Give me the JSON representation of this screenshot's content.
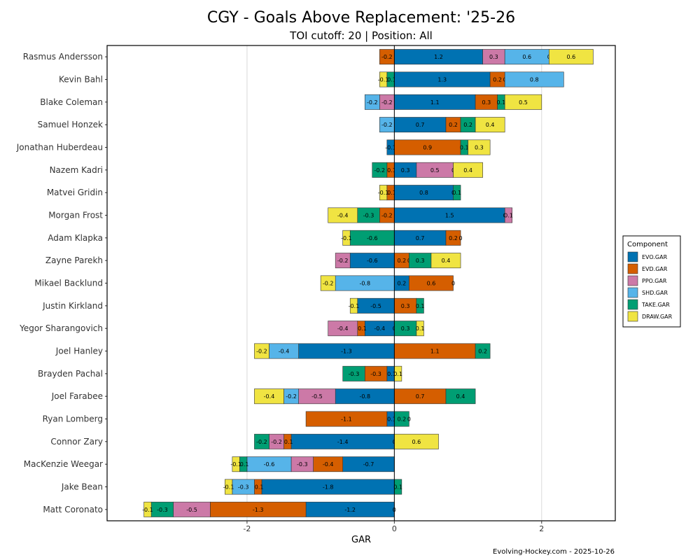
{
  "chart_data": {
    "type": "bar",
    "orientation": "horizontal",
    "stacked": "diverging",
    "title": "CGY - Goals Above Replacement: '25-26",
    "subtitle": "TOI cutoff: 20 | Position: All",
    "xlabel": "GAR",
    "ylabel": "",
    "xlim": [
      -3.9,
      3.0
    ],
    "xticks": [
      -2,
      0,
      2
    ],
    "xtick_labels": [
      "-2",
      "0",
      "2"
    ],
    "grid": true,
    "caption": "Evolving-Hockey.com - 2025-10-26",
    "legend": {
      "title": "Component",
      "position": "right",
      "entries": [
        "EVO.GAR",
        "EVD.GAR",
        "PPO.GAR",
        "SHD.GAR",
        "TAKE.GAR",
        "DRAW.GAR"
      ]
    },
    "series": [
      {
        "name": "EVO.GAR",
        "color": "#0072B2"
      },
      {
        "name": "EVD.GAR",
        "color": "#D55E00"
      },
      {
        "name": "PPO.GAR",
        "color": "#CC79A7"
      },
      {
        "name": "SHD.GAR",
        "color": "#56B4E9"
      },
      {
        "name": "TAKE.GAR",
        "color": "#009E73"
      },
      {
        "name": "DRAW.GAR",
        "color": "#F0E442"
      }
    ],
    "players": [
      {
        "name": "Rasmus Andersson",
        "segments": [
          [
            "EVD.GAR",
            -0.2,
            "-0.2"
          ],
          [
            "EVO.GAR",
            1.2,
            "1.2"
          ],
          [
            "PPO.GAR",
            0.3,
            "0.3"
          ],
          [
            "SHD.GAR",
            0.6,
            "0.6"
          ],
          [
            "TAKE.GAR",
            0.0,
            "0"
          ],
          [
            "DRAW.GAR",
            0.6,
            "0.6"
          ]
        ]
      },
      {
        "name": "Kevin Bahl",
        "segments": [
          [
            "TAKE.GAR",
            -0.1,
            "-0.1"
          ],
          [
            "DRAW.GAR",
            -0.1,
            "-0.1"
          ],
          [
            "EVO.GAR",
            1.3,
            "1.3"
          ],
          [
            "EVD.GAR",
            0.2,
            "0.2"
          ],
          [
            "PPO.GAR",
            0.0,
            "0"
          ],
          [
            "SHD.GAR",
            0.8,
            "0.8"
          ]
        ]
      },
      {
        "name": "Blake Coleman",
        "segments": [
          [
            "PPO.GAR",
            -0.2,
            "-0.2"
          ],
          [
            "SHD.GAR",
            -0.2,
            "-0.2"
          ],
          [
            "EVO.GAR",
            1.1,
            "1.1"
          ],
          [
            "EVD.GAR",
            0.3,
            "0.3"
          ],
          [
            "TAKE.GAR",
            0.1,
            "0.1"
          ],
          [
            "DRAW.GAR",
            0.5,
            "0.5"
          ]
        ]
      },
      {
        "name": "Samuel Honzek",
        "segments": [
          [
            "SHD.GAR",
            -0.2,
            "-0.2"
          ],
          [
            "EVO.GAR",
            0.7,
            "0.7"
          ],
          [
            "EVD.GAR",
            0.2,
            "0.2"
          ],
          [
            "TAKE.GAR",
            0.2,
            "0.2"
          ],
          [
            "DRAW.GAR",
            0.4,
            "0.4"
          ]
        ]
      },
      {
        "name": "Jonathan Huberdeau",
        "segments": [
          [
            "EVO.GAR",
            -0.1,
            "-0.1"
          ],
          [
            "EVD.GAR",
            0.9,
            "0.9"
          ],
          [
            "TAKE.GAR",
            0.1,
            "0.1"
          ],
          [
            "DRAW.GAR",
            0.3,
            "0.3"
          ]
        ]
      },
      {
        "name": "Nazem Kadri",
        "segments": [
          [
            "EVD.GAR",
            -0.1,
            "-0.1"
          ],
          [
            "TAKE.GAR",
            -0.2,
            "-0.2"
          ],
          [
            "EVO.GAR",
            0.3,
            "0.3"
          ],
          [
            "PPO.GAR",
            0.5,
            "0.5"
          ],
          [
            "SHD.GAR",
            0.0,
            "0"
          ],
          [
            "DRAW.GAR",
            0.4,
            "0.4"
          ]
        ]
      },
      {
        "name": "Matvei Gridin",
        "segments": [
          [
            "EVD.GAR",
            -0.1,
            "-0.1"
          ],
          [
            "DRAW.GAR",
            -0.1,
            "-0.1"
          ],
          [
            "EVO.GAR",
            0.8,
            "0.8"
          ],
          [
            "PPO.GAR",
            0.0,
            "0"
          ],
          [
            "TAKE.GAR",
            0.1,
            "0.1"
          ]
        ]
      },
      {
        "name": "Morgan Frost",
        "segments": [
          [
            "EVD.GAR",
            -0.2,
            "-0.2"
          ],
          [
            "TAKE.GAR",
            -0.3,
            "-0.3"
          ],
          [
            "DRAW.GAR",
            -0.4,
            "-0.4"
          ],
          [
            "EVO.GAR",
            1.5,
            "1.5"
          ],
          [
            "SHD.GAR",
            0.0,
            "0"
          ],
          [
            "PPO.GAR",
            0.1,
            "0.1"
          ]
        ]
      },
      {
        "name": "Adam Klapka",
        "segments": [
          [
            "TAKE.GAR",
            -0.6,
            "-0.6"
          ],
          [
            "DRAW.GAR",
            -0.1,
            "-0.1"
          ],
          [
            "EVO.GAR",
            0.7,
            "0.7"
          ],
          [
            "EVD.GAR",
            0.2,
            "0.2"
          ],
          [
            "PPO.GAR",
            0.0,
            "0"
          ]
        ]
      },
      {
        "name": "Zayne Parekh",
        "segments": [
          [
            "EVO.GAR",
            -0.6,
            "-0.6"
          ],
          [
            "PPO.GAR",
            -0.2,
            "-0.2"
          ],
          [
            "EVD.GAR",
            0.2,
            "0.2"
          ],
          [
            "SHD.GAR",
            0.0,
            "0"
          ],
          [
            "TAKE.GAR",
            0.3,
            "0.3"
          ],
          [
            "DRAW.GAR",
            0.4,
            "0.4"
          ]
        ]
      },
      {
        "name": "Mikael Backlund",
        "segments": [
          [
            "SHD.GAR",
            -0.8,
            "-0.8"
          ],
          [
            "DRAW.GAR",
            -0.2,
            "-0.2"
          ],
          [
            "EVO.GAR",
            0.2,
            "0.2"
          ],
          [
            "EVD.GAR",
            0.6,
            "0.6"
          ],
          [
            "PPO.GAR",
            0.0,
            "0"
          ]
        ]
      },
      {
        "name": "Justin Kirkland",
        "segments": [
          [
            "EVO.GAR",
            -0.5,
            "-0.5"
          ],
          [
            "DRAW.GAR",
            -0.1,
            "-0.1"
          ],
          [
            "EVD.GAR",
            0.3,
            "0.3"
          ],
          [
            "TAKE.GAR",
            0.1,
            "0.1"
          ]
        ]
      },
      {
        "name": "Yegor Sharangovich",
        "segments": [
          [
            "EVO.GAR",
            -0.4,
            "-0.4"
          ],
          [
            "EVD.GAR",
            -0.1,
            "-0.1"
          ],
          [
            "PPO.GAR",
            -0.4,
            "-0.4"
          ],
          [
            "SHD.GAR",
            0.0,
            "0"
          ],
          [
            "TAKE.GAR",
            0.3,
            "0.3"
          ],
          [
            "DRAW.GAR",
            0.1,
            "0.1"
          ]
        ]
      },
      {
        "name": "Joel Hanley",
        "segments": [
          [
            "EVO.GAR",
            -1.3,
            "-1.3"
          ],
          [
            "SHD.GAR",
            -0.4,
            "-0.4"
          ],
          [
            "DRAW.GAR",
            -0.2,
            "-0.2"
          ],
          [
            "EVD.GAR",
            1.1,
            "1.1"
          ],
          [
            "TAKE.GAR",
            0.2,
            "0.2"
          ]
        ]
      },
      {
        "name": "Brayden Pachal",
        "segments": [
          [
            "EVO.GAR",
            -0.1,
            "-0.1"
          ],
          [
            "EVD.GAR",
            -0.3,
            "-0.3"
          ],
          [
            "TAKE.GAR",
            -0.3,
            "-0.3"
          ],
          [
            "DRAW.GAR",
            0.1,
            "0.1"
          ]
        ]
      },
      {
        "name": "Joel Farabee",
        "segments": [
          [
            "EVO.GAR",
            -0.8,
            "-0.8"
          ],
          [
            "PPO.GAR",
            -0.5,
            "-0.5"
          ],
          [
            "SHD.GAR",
            -0.2,
            "-0.2"
          ],
          [
            "DRAW.GAR",
            -0.4,
            "-0.4"
          ],
          [
            "EVD.GAR",
            0.7,
            "0.7"
          ],
          [
            "TAKE.GAR",
            0.4,
            "0.4"
          ]
        ]
      },
      {
        "name": "Ryan Lomberg",
        "segments": [
          [
            "EVO.GAR",
            -0.1,
            "-0.1"
          ],
          [
            "EVD.GAR",
            -1.1,
            "-1.1"
          ],
          [
            "TAKE.GAR",
            0.2,
            "0.2"
          ],
          [
            "DRAW.GAR",
            0.0,
            "0"
          ]
        ]
      },
      {
        "name": "Connor Zary",
        "segments": [
          [
            "EVO.GAR",
            -1.4,
            "-1.4"
          ],
          [
            "EVD.GAR",
            -0.1,
            "-0.1"
          ],
          [
            "PPO.GAR",
            -0.2,
            "-0.2"
          ],
          [
            "TAKE.GAR",
            -0.2,
            "-0.2"
          ],
          [
            "SHD.GAR",
            0.0,
            "0"
          ],
          [
            "DRAW.GAR",
            0.6,
            "0.6"
          ]
        ]
      },
      {
        "name": "MacKenzie Weegar",
        "segments": [
          [
            "EVO.GAR",
            -0.7,
            "-0.7"
          ],
          [
            "EVD.GAR",
            -0.4,
            "-0.4"
          ],
          [
            "PPO.GAR",
            -0.3,
            "-0.3"
          ],
          [
            "SHD.GAR",
            -0.6,
            "-0.6"
          ],
          [
            "TAKE.GAR",
            -0.1,
            "-0.1"
          ],
          [
            "DRAW.GAR",
            -0.1,
            "-0.1"
          ]
        ]
      },
      {
        "name": "Jake Bean",
        "segments": [
          [
            "EVO.GAR",
            -1.8,
            "-1.8"
          ],
          [
            "EVD.GAR",
            -0.1,
            "-0.1"
          ],
          [
            "SHD.GAR",
            -0.3,
            "-0.3"
          ],
          [
            "DRAW.GAR",
            -0.1,
            "-0.1"
          ],
          [
            "TAKE.GAR",
            0.1,
            "0.1"
          ]
        ]
      },
      {
        "name": "Matt Coronato",
        "segments": [
          [
            "EVO.GAR",
            -1.2,
            "-1.2"
          ],
          [
            "EVD.GAR",
            -1.3,
            "-1.3"
          ],
          [
            "PPO.GAR",
            -0.5,
            "-0.5"
          ],
          [
            "TAKE.GAR",
            -0.3,
            "-0.3"
          ],
          [
            "DRAW.GAR",
            -0.1,
            "-0.1"
          ],
          [
            "SHD.GAR",
            0.0,
            "0"
          ]
        ]
      }
    ]
  }
}
